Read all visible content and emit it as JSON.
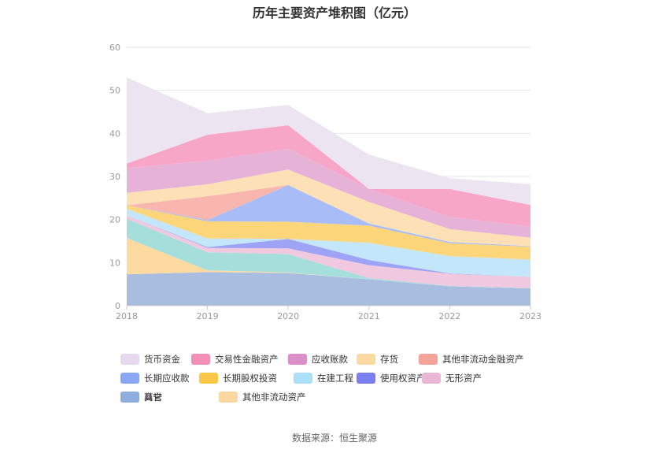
{
  "chart_data": {
    "type": "area",
    "stacked": true,
    "title": "历年主要资产堆积图（亿元）",
    "categories": [
      "2018",
      "2019",
      "2020",
      "2021",
      "2022",
      "2023"
    ],
    "ylim": [
      0,
      60
    ],
    "yticks": [
      "0",
      "10",
      "20",
      "30",
      "40",
      "50",
      "60"
    ],
    "grid": true,
    "legend_position": "bottom",
    "series": [
      {
        "name": "其它",
        "color": "#a9bde0",
        "values": [
          7.3,
          7.8,
          7.6,
          6.1,
          4.5,
          4.0
        ]
      },
      {
        "name": "其他非流动资产",
        "color": "#fddba0",
        "values": [
          8.4,
          0.4,
          0.1,
          0.0,
          0.0,
          0.0
        ]
      },
      {
        "name": "商誉",
        "color": "#a6dedb",
        "values": [
          4.5,
          4.2,
          4.3,
          0.3,
          0.1,
          0.1
        ]
      },
      {
        "name": "无形资产",
        "color": "#f0c8df",
        "values": [
          0.8,
          1.0,
          1.3,
          3.0,
          2.8,
          2.6
        ]
      },
      {
        "name": "使用权资产",
        "color": "#9ea3f5",
        "values": [
          0.0,
          0.2,
          2.2,
          1.2,
          0.1,
          0.0
        ]
      },
      {
        "name": "在建工程",
        "color": "#c3e6fb",
        "values": [
          1.5,
          2.0,
          0.0,
          4.0,
          4.0,
          4.0
        ]
      },
      {
        "name": "长期股权投资",
        "color": "#fdd57a",
        "values": [
          0.8,
          4.0,
          4.0,
          4.0,
          3.0,
          3.0
        ]
      },
      {
        "name": "长期应收款",
        "color": "#a8bdf7",
        "values": [
          0.0,
          0.3,
          8.5,
          0.5,
          0.3,
          0.1
        ]
      },
      {
        "name": "其他非流动金融资产",
        "color": "#f9b6ae",
        "values": [
          0.0,
          5.5,
          0.0,
          0.0,
          0.0,
          0.0
        ]
      },
      {
        "name": "存货",
        "color": "#fde0b6",
        "values": [
          2.9,
          2.8,
          3.6,
          5.0,
          3.0,
          2.0
        ]
      },
      {
        "name": "应收账款",
        "color": "#e6b2d8",
        "values": [
          5.7,
          5.5,
          4.8,
          3.0,
          2.8,
          2.6
        ]
      },
      {
        "name": "交易性金融资产",
        "color": "#f7a6c8",
        "values": [
          1.1,
          6.0,
          5.5,
          0.0,
          6.5,
          5.0
        ]
      },
      {
        "name": "货币资金",
        "color": "#ece4f1",
        "values": [
          20.0,
          5.0,
          4.7,
          8.0,
          2.5,
          4.8
        ]
      }
    ]
  },
  "legend_order": [
    "货币资金",
    "交易性金融资产",
    "应收账款",
    "存货",
    "其他非流动金融资产",
    "长期应收款",
    "长期股权投资",
    "在建工程",
    "使用权资产",
    "无形资产",
    "商誉",
    "其他非流动资产",
    "其它"
  ],
  "legend_colors": {
    "货币资金": "#e8d8ee",
    "交易性金融资产": "#f48fb8",
    "应收账款": "#db8fc6",
    "存货": "#fcd9a0",
    "其他非流动金融资产": "#f6a49b",
    "长期应收款": "#8aa7f4",
    "长期股权投资": "#fbc746",
    "在建工程": "#ace0fa",
    "使用权资产": "#7a80ef",
    "无形资产": "#eab6d6",
    "商誉": "#86d6d6",
    "其他非流动资产": "#fcd79f",
    "其它": "#8faedd"
  },
  "source": "数据来源：恒生聚源"
}
